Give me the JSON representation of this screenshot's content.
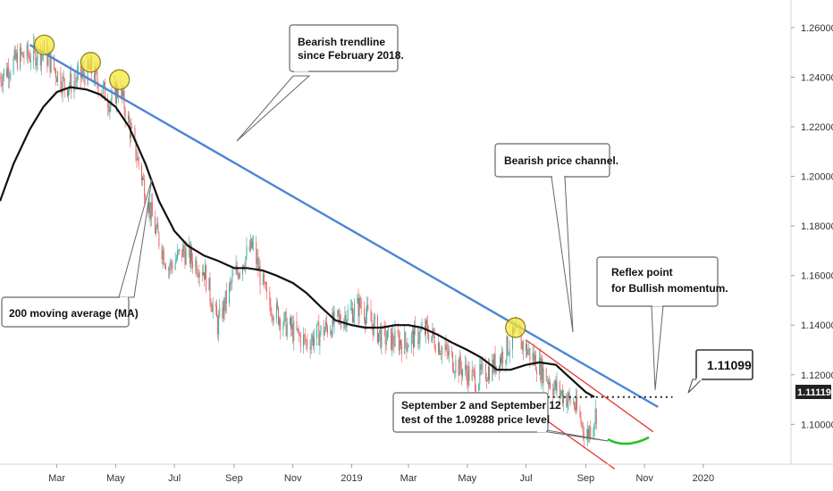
{
  "chart_data": {
    "type": "candlestick",
    "instrument_axis": "price",
    "x_ticks": [
      "Mar",
      "May",
      "Jul",
      "Sep",
      "Nov",
      "2019",
      "Mar",
      "May",
      "Jul",
      "Sep",
      "Nov",
      "2020"
    ],
    "y_ticks": [
      "1.26000",
      "1.24000",
      "1.22000",
      "1.20000",
      "1.18000",
      "1.16000",
      "1.14000",
      "1.12000",
      "1.10000"
    ],
    "ylim": [
      1.085,
      1.265
    ],
    "current_price": "1.11119",
    "grid": false,
    "series": [
      {
        "name": "200 moving average (MA)",
        "color": "#111111",
        "points": [
          [
            "2018-01-01",
            1.19
          ],
          [
            "2018-01-15",
            1.205
          ],
          [
            "2018-02-01",
            1.219
          ],
          [
            "2018-02-15",
            1.228
          ],
          [
            "2018-03-01",
            1.234
          ],
          [
            "2018-03-15",
            1.236
          ],
          [
            "2018-04-01",
            1.235
          ],
          [
            "2018-04-15",
            1.233
          ],
          [
            "2018-05-01",
            1.228
          ],
          [
            "2018-05-15",
            1.22
          ],
          [
            "2018-06-01",
            1.205
          ],
          [
            "2018-06-15",
            1.19
          ],
          [
            "2018-07-01",
            1.178
          ],
          [
            "2018-07-15",
            1.172
          ],
          [
            "2018-08-01",
            1.168
          ],
          [
            "2018-08-15",
            1.166
          ],
          [
            "2018-09-01",
            1.163
          ],
          [
            "2018-09-15",
            1.163
          ],
          [
            "2018-10-01",
            1.162
          ],
          [
            "2018-10-15",
            1.16
          ],
          [
            "2018-11-01",
            1.157
          ],
          [
            "2018-11-15",
            1.153
          ],
          [
            "2018-12-01",
            1.147
          ],
          [
            "2018-12-15",
            1.142
          ],
          [
            "2019-01-01",
            1.14
          ],
          [
            "2019-01-15",
            1.139
          ],
          [
            "2019-02-01",
            1.139
          ],
          [
            "2019-02-15",
            1.14
          ],
          [
            "2019-03-01",
            1.14
          ],
          [
            "2019-03-15",
            1.139
          ],
          [
            "2019-04-01",
            1.136
          ],
          [
            "2019-04-15",
            1.133
          ],
          [
            "2019-05-01",
            1.13
          ],
          [
            "2019-05-15",
            1.127
          ],
          [
            "2019-06-01",
            1.122
          ],
          [
            "2019-06-15",
            1.122
          ],
          [
            "2019-07-01",
            1.124
          ],
          [
            "2019-07-15",
            1.125
          ],
          [
            "2019-08-01",
            1.124
          ],
          [
            "2019-08-15",
            1.119
          ],
          [
            "2019-09-01",
            1.113
          ],
          [
            "2019-09-10",
            1.111
          ]
        ]
      },
      {
        "name": "Bearish trendline",
        "color": "#4a86d4",
        "points": [
          [
            "2018-02-01",
            1.253
          ],
          [
            "2019-11-15",
            1.107
          ]
        ]
      }
    ],
    "channel": {
      "color": "#e53935",
      "upper": [
        [
          "2019-07-01",
          1.134
        ],
        [
          "2019-11-10",
          1.097
        ]
      ],
      "lower": [
        [
          "2019-07-10",
          1.105
        ],
        [
          "2019-10-01",
          1.082
        ]
      ]
    },
    "support_line": {
      "value": 1.111,
      "style": "dotted",
      "from": "2019-05-01",
      "to": "2019-11-30"
    },
    "highlight_points": [
      [
        "2018-02-16",
        1.253
      ],
      [
        "2018-04-05",
        1.246
      ],
      [
        "2018-05-05",
        1.239
      ],
      [
        "2019-06-20",
        1.139
      ]
    ],
    "annotations": [
      {
        "id": "trendline",
        "lines": [
          "Bearish trendline",
          "since February 2018."
        ]
      },
      {
        "id": "ma",
        "lines": [
          "200 moving average (MA)"
        ]
      },
      {
        "id": "channel",
        "lines": [
          "Bearish price channel."
        ]
      },
      {
        "id": "reflex",
        "lines": [
          "Reflex point",
          "for Bullish momentum."
        ]
      },
      {
        "id": "september",
        "lines": [
          "September 2 and September 12",
          "test of the 1.09288 price level"
        ]
      },
      {
        "id": "value",
        "lines": [
          "1.11099"
        ]
      }
    ]
  }
}
